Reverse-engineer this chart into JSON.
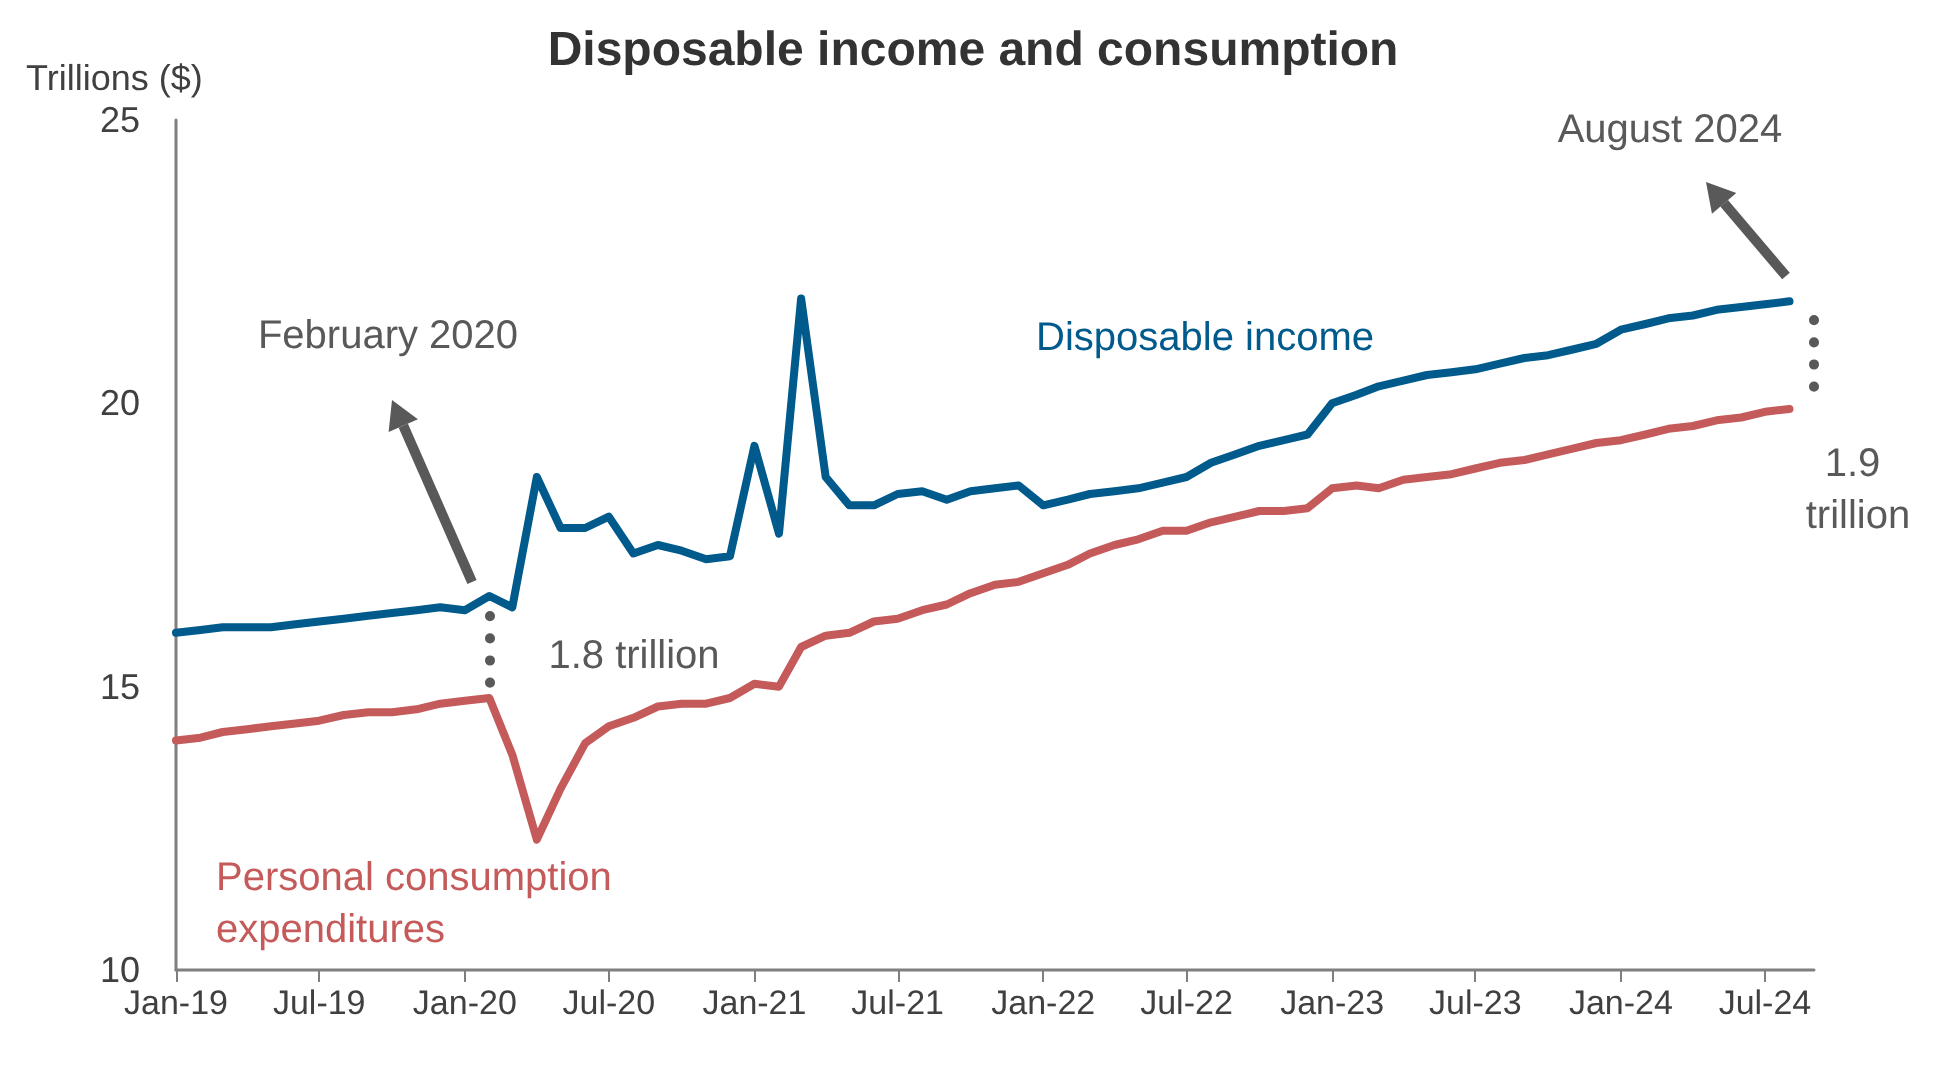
{
  "chart_data": {
    "type": "line",
    "title": "Disposable income and consumption",
    "ylabel": "Trillions ($)",
    "x": [
      "2019-01",
      "2019-02",
      "2019-03",
      "2019-04",
      "2019-05",
      "2019-06",
      "2019-07",
      "2019-08",
      "2019-09",
      "2019-10",
      "2019-11",
      "2019-12",
      "2020-01",
      "2020-02",
      "2020-03",
      "2020-04",
      "2020-05",
      "2020-06",
      "2020-07",
      "2020-08",
      "2020-09",
      "2020-10",
      "2020-11",
      "2020-12",
      "2021-01",
      "2021-02",
      "2021-03",
      "2021-04",
      "2021-05",
      "2021-06",
      "2021-07",
      "2021-08",
      "2021-09",
      "2021-10",
      "2021-11",
      "2021-12",
      "2022-01",
      "2022-02",
      "2022-03",
      "2022-04",
      "2022-05",
      "2022-06",
      "2022-07",
      "2022-08",
      "2022-09",
      "2022-10",
      "2022-11",
      "2022-12",
      "2023-01",
      "2023-02",
      "2023-03",
      "2023-04",
      "2023-05",
      "2023-06",
      "2023-07",
      "2023-08",
      "2023-09",
      "2023-10",
      "2023-11",
      "2023-12",
      "2024-01",
      "2024-02",
      "2024-03",
      "2024-04",
      "2024-05",
      "2024-06",
      "2024-07",
      "2024-08"
    ],
    "series": [
      {
        "name": "Disposable income",
        "color": "#005a8c",
        "values": [
          15.95,
          16.0,
          16.05,
          16.05,
          16.05,
          16.1,
          16.15,
          16.2,
          16.25,
          16.3,
          16.35,
          16.4,
          16.35,
          16.6,
          16.4,
          18.7,
          17.8,
          17.8,
          18.0,
          17.35,
          17.5,
          17.4,
          17.25,
          17.3,
          19.25,
          17.7,
          21.85,
          18.7,
          18.2,
          18.2,
          18.4,
          18.45,
          18.3,
          18.45,
          18.5,
          18.55,
          18.2,
          18.3,
          18.4,
          18.45,
          18.5,
          18.6,
          18.7,
          18.95,
          19.1,
          19.25,
          19.35,
          19.45,
          20.0,
          20.15,
          20.3,
          20.4,
          20.5,
          20.55,
          20.6,
          20.7,
          20.8,
          20.85,
          20.95,
          21.05,
          21.3,
          21.4,
          21.5,
          21.55,
          21.65,
          21.7,
          21.75,
          21.8
        ]
      },
      {
        "name": "Personal consumption expenditures",
        "color": "#c55a5a",
        "values": [
          14.05,
          14.1,
          14.2,
          14.25,
          14.3,
          14.35,
          14.4,
          14.5,
          14.55,
          14.55,
          14.6,
          14.7,
          14.75,
          14.8,
          13.8,
          12.3,
          13.2,
          14.0,
          14.3,
          14.45,
          14.65,
          14.7,
          14.7,
          14.8,
          15.05,
          15.0,
          15.7,
          15.9,
          15.95,
          16.15,
          16.2,
          16.35,
          16.45,
          16.65,
          16.8,
          16.85,
          17.0,
          17.15,
          17.35,
          17.5,
          17.6,
          17.75,
          17.75,
          17.9,
          18.0,
          18.1,
          18.1,
          18.15,
          18.5,
          18.55,
          18.5,
          18.65,
          18.7,
          18.75,
          18.85,
          18.95,
          19.0,
          19.1,
          19.2,
          19.3,
          19.35,
          19.45,
          19.55,
          19.6,
          19.7,
          19.75,
          19.85,
          19.9
        ]
      }
    ],
    "xlim": [
      "2019-01",
      "2024-09"
    ],
    "xticks": [
      {
        "value": "2019-01",
        "label": "Jan-19"
      },
      {
        "value": "2019-07",
        "label": "Jul-19"
      },
      {
        "value": "2020-01",
        "label": "Jan-20"
      },
      {
        "value": "2020-07",
        "label": "Jul-20"
      },
      {
        "value": "2021-01",
        "label": "Jan-21"
      },
      {
        "value": "2021-07",
        "label": "Jul-21"
      },
      {
        "value": "2022-01",
        "label": "Jan-22"
      },
      {
        "value": "2022-07",
        "label": "Jul-22"
      },
      {
        "value": "2023-01",
        "label": "Jan-23"
      },
      {
        "value": "2023-07",
        "label": "Jul-23"
      },
      {
        "value": "2024-01",
        "label": "Jan-24"
      },
      {
        "value": "2024-07",
        "label": "Jul-24"
      }
    ],
    "ylim": [
      10,
      25
    ],
    "yticks": [
      10,
      15,
      20,
      25
    ],
    "annotations": [
      "February 2020",
      "August 2024",
      "1.8 trillion",
      "1.9 trillion"
    ],
    "grid": false,
    "legend": false,
    "marker": "none",
    "line_style": "solid"
  }
}
